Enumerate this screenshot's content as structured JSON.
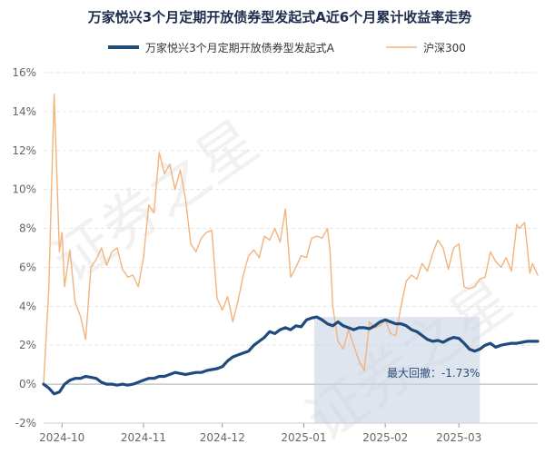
{
  "chart_data": {
    "type": "line",
    "title": "万家悦兴3个月定期开放债券型发起式A近6个月累计收益率走势",
    "ylim": [
      -2,
      16
    ],
    "yticks": [
      -2,
      0,
      2,
      4,
      6,
      8,
      10,
      12,
      14,
      16
    ],
    "ytick_labels": [
      "-2%",
      "0%",
      "2%",
      "4%",
      "6%",
      "8%",
      "10%",
      "12%",
      "14%",
      "16%"
    ],
    "xlim": [
      "2024-09-24",
      "2025-03-31"
    ],
    "xticks": [
      "2024-10-01",
      "2024-11-01",
      "2024-12-01",
      "2025-01-01",
      "2025-02-01",
      "2025-03-01"
    ],
    "xtick_labels": [
      "2024-10",
      "2024-11",
      "2024-12",
      "2025-01",
      "2025-02",
      "2025-03"
    ],
    "grid": true,
    "legend": "top",
    "series": [
      {
        "name": "万家悦兴3个月定期开放债券型发起式A",
        "color": "#1e4a7d",
        "points": [
          [
            "2024-09-24",
            0.0
          ],
          [
            "2024-09-26",
            -0.2
          ],
          [
            "2024-09-28",
            -0.5
          ],
          [
            "2024-09-30",
            -0.4
          ],
          [
            "2024-10-02",
            0.0
          ],
          [
            "2024-10-04",
            0.2
          ],
          [
            "2024-10-06",
            0.3
          ],
          [
            "2024-10-08",
            0.3
          ],
          [
            "2024-10-10",
            0.4
          ],
          [
            "2024-10-12",
            0.35
          ],
          [
            "2024-10-14",
            0.3
          ],
          [
            "2024-10-16",
            0.1
          ],
          [
            "2024-10-18",
            0.0
          ],
          [
            "2024-10-20",
            0.0
          ],
          [
            "2024-10-22",
            -0.05
          ],
          [
            "2024-10-24",
            0.0
          ],
          [
            "2024-10-26",
            -0.05
          ],
          [
            "2024-10-28",
            0.0
          ],
          [
            "2024-10-30",
            0.1
          ],
          [
            "2024-11-01",
            0.2
          ],
          [
            "2024-11-03",
            0.3
          ],
          [
            "2024-11-05",
            0.3
          ],
          [
            "2024-11-07",
            0.4
          ],
          [
            "2024-11-09",
            0.4
          ],
          [
            "2024-11-11",
            0.5
          ],
          [
            "2024-11-13",
            0.6
          ],
          [
            "2024-11-15",
            0.55
          ],
          [
            "2024-11-17",
            0.5
          ],
          [
            "2024-11-19",
            0.55
          ],
          [
            "2024-11-21",
            0.6
          ],
          [
            "2024-11-23",
            0.6
          ],
          [
            "2024-11-25",
            0.7
          ],
          [
            "2024-11-27",
            0.75
          ],
          [
            "2024-11-29",
            0.8
          ],
          [
            "2024-12-01",
            0.9
          ],
          [
            "2024-12-03",
            1.2
          ],
          [
            "2024-12-05",
            1.4
          ],
          [
            "2024-12-07",
            1.5
          ],
          [
            "2024-12-09",
            1.6
          ],
          [
            "2024-12-11",
            1.7
          ],
          [
            "2024-12-13",
            2.0
          ],
          [
            "2024-12-15",
            2.2
          ],
          [
            "2024-12-17",
            2.4
          ],
          [
            "2024-12-19",
            2.7
          ],
          [
            "2024-12-21",
            2.6
          ],
          [
            "2024-12-23",
            2.8
          ],
          [
            "2024-12-25",
            2.9
          ],
          [
            "2024-12-27",
            2.8
          ],
          [
            "2024-12-29",
            3.0
          ],
          [
            "2024-12-31",
            2.95
          ],
          [
            "2025-01-02",
            3.3
          ],
          [
            "2025-01-04",
            3.4
          ],
          [
            "2025-01-06",
            3.45
          ],
          [
            "2025-01-08",
            3.3
          ],
          [
            "2025-01-10",
            3.1
          ],
          [
            "2025-01-12",
            3.0
          ],
          [
            "2025-01-14",
            3.2
          ],
          [
            "2025-01-16",
            3.0
          ],
          [
            "2025-01-18",
            2.9
          ],
          [
            "2025-01-20",
            2.8
          ],
          [
            "2025-01-22",
            2.9
          ],
          [
            "2025-01-24",
            2.9
          ],
          [
            "2025-01-26",
            2.85
          ],
          [
            "2025-01-28",
            3.0
          ],
          [
            "2025-01-30",
            3.2
          ],
          [
            "2025-02-01",
            3.3
          ],
          [
            "2025-02-03",
            3.2
          ],
          [
            "2025-02-05",
            3.1
          ],
          [
            "2025-02-07",
            3.1
          ],
          [
            "2025-02-09",
            3.0
          ],
          [
            "2025-02-11",
            2.8
          ],
          [
            "2025-02-13",
            2.7
          ],
          [
            "2025-02-15",
            2.5
          ],
          [
            "2025-02-17",
            2.3
          ],
          [
            "2025-02-19",
            2.2
          ],
          [
            "2025-02-21",
            2.25
          ],
          [
            "2025-02-23",
            2.15
          ],
          [
            "2025-02-25",
            2.3
          ],
          [
            "2025-02-27",
            2.4
          ],
          [
            "2025-03-01",
            2.35
          ],
          [
            "2025-03-03",
            2.1
          ],
          [
            "2025-03-05",
            1.8
          ],
          [
            "2025-03-07",
            1.7
          ],
          [
            "2025-03-09",
            1.8
          ],
          [
            "2025-03-11",
            2.0
          ],
          [
            "2025-03-13",
            2.1
          ],
          [
            "2025-03-15",
            1.9
          ],
          [
            "2025-03-17",
            2.0
          ],
          [
            "2025-03-19",
            2.05
          ],
          [
            "2025-03-21",
            2.1
          ],
          [
            "2025-03-23",
            2.1
          ],
          [
            "2025-03-25",
            2.15
          ],
          [
            "2025-03-27",
            2.2
          ],
          [
            "2025-03-29",
            2.2
          ],
          [
            "2025-03-31",
            2.2
          ]
        ]
      },
      {
        "name": "沪深300",
        "color": "#f2b47c",
        "points": [
          [
            "2024-09-24",
            0.0
          ],
          [
            "2024-09-26",
            5.0
          ],
          [
            "2024-09-27",
            10.0
          ],
          [
            "2024-09-28",
            14.9
          ],
          [
            "2024-09-30",
            6.8
          ],
          [
            "2024-10-01",
            7.8
          ],
          [
            "2024-10-02",
            5.0
          ],
          [
            "2024-10-04",
            6.9
          ],
          [
            "2024-10-06",
            4.2
          ],
          [
            "2024-10-08",
            3.5
          ],
          [
            "2024-10-10",
            2.3
          ],
          [
            "2024-10-12",
            6.0
          ],
          [
            "2024-10-14",
            6.4
          ],
          [
            "2024-10-16",
            7.0
          ],
          [
            "2024-10-18",
            6.1
          ],
          [
            "2024-10-20",
            6.8
          ],
          [
            "2024-10-22",
            7.0
          ],
          [
            "2024-10-24",
            5.9
          ],
          [
            "2024-10-26",
            5.5
          ],
          [
            "2024-10-28",
            5.6
          ],
          [
            "2024-10-30",
            5.0
          ],
          [
            "2024-11-01",
            6.5
          ],
          [
            "2024-11-03",
            9.2
          ],
          [
            "2024-11-05",
            8.8
          ],
          [
            "2024-11-07",
            11.9
          ],
          [
            "2024-11-09",
            10.8
          ],
          [
            "2024-11-11",
            11.3
          ],
          [
            "2024-11-13",
            10.0
          ],
          [
            "2024-11-15",
            11.0
          ],
          [
            "2024-11-17",
            9.5
          ],
          [
            "2024-11-19",
            7.2
          ],
          [
            "2024-11-21",
            6.8
          ],
          [
            "2024-11-23",
            7.5
          ],
          [
            "2024-11-25",
            7.8
          ],
          [
            "2024-11-27",
            7.9
          ],
          [
            "2024-11-29",
            4.4
          ],
          [
            "2024-12-01",
            3.8
          ],
          [
            "2024-12-03",
            4.5
          ],
          [
            "2024-12-05",
            3.2
          ],
          [
            "2024-12-07",
            4.3
          ],
          [
            "2024-12-09",
            5.6
          ],
          [
            "2024-12-11",
            6.6
          ],
          [
            "2024-12-13",
            6.9
          ],
          [
            "2024-12-15",
            6.5
          ],
          [
            "2024-12-17",
            7.6
          ],
          [
            "2024-12-19",
            7.4
          ],
          [
            "2024-12-21",
            8.0
          ],
          [
            "2024-12-23",
            7.3
          ],
          [
            "2024-12-25",
            9.0
          ],
          [
            "2024-12-27",
            5.5
          ],
          [
            "2024-12-29",
            6.0
          ],
          [
            "2024-12-31",
            6.6
          ],
          [
            "2025-01-02",
            6.5
          ],
          [
            "2025-01-04",
            7.5
          ],
          [
            "2025-01-06",
            7.6
          ],
          [
            "2025-01-08",
            7.5
          ],
          [
            "2025-01-10",
            8.0
          ],
          [
            "2025-01-11",
            6.8
          ],
          [
            "2025-01-12",
            4.0
          ],
          [
            "2025-01-14",
            2.2
          ],
          [
            "2025-01-16",
            1.8
          ],
          [
            "2025-01-18",
            2.8
          ],
          [
            "2025-01-20",
            2.0
          ],
          [
            "2025-01-22",
            1.2
          ],
          [
            "2025-01-24",
            0.7
          ],
          [
            "2025-01-26",
            3.2
          ],
          [
            "2025-01-28",
            2.9
          ],
          [
            "2025-01-30",
            3.0
          ],
          [
            "2025-02-01",
            3.3
          ],
          [
            "2025-02-03",
            2.6
          ],
          [
            "2025-02-05",
            2.5
          ],
          [
            "2025-02-07",
            4.0
          ],
          [
            "2025-02-09",
            5.3
          ],
          [
            "2025-02-11",
            5.6
          ],
          [
            "2025-02-13",
            5.4
          ],
          [
            "2025-02-15",
            6.2
          ],
          [
            "2025-02-17",
            5.8
          ],
          [
            "2025-02-19",
            6.7
          ],
          [
            "2025-02-21",
            7.4
          ],
          [
            "2025-02-23",
            7.0
          ],
          [
            "2025-02-25",
            5.9
          ],
          [
            "2025-02-27",
            7.0
          ],
          [
            "2025-03-01",
            7.2
          ],
          [
            "2025-03-03",
            5.0
          ],
          [
            "2025-03-05",
            4.9
          ],
          [
            "2025-03-07",
            5.0
          ],
          [
            "2025-03-09",
            5.4
          ],
          [
            "2025-03-11",
            5.5
          ],
          [
            "2025-03-13",
            6.8
          ],
          [
            "2025-03-15",
            6.3
          ],
          [
            "2025-03-17",
            6.0
          ],
          [
            "2025-03-19",
            6.5
          ],
          [
            "2025-03-21",
            5.8
          ],
          [
            "2025-03-23",
            8.2
          ],
          [
            "2025-03-24",
            8.0
          ],
          [
            "2025-03-26",
            8.3
          ],
          [
            "2025-03-27",
            7.1
          ],
          [
            "2025-03-28",
            5.7
          ],
          [
            "2025-03-29",
            6.2
          ],
          [
            "2025-03-30",
            5.9
          ],
          [
            "2025-03-31",
            5.6
          ]
        ]
      }
    ],
    "max_drawdown": {
      "label": "最大回撤：-1.73%",
      "start": "2025-01-05",
      "end": "2025-03-09",
      "from_value": 3.45,
      "to_value": -2.0
    }
  },
  "watermark": "证券之星"
}
